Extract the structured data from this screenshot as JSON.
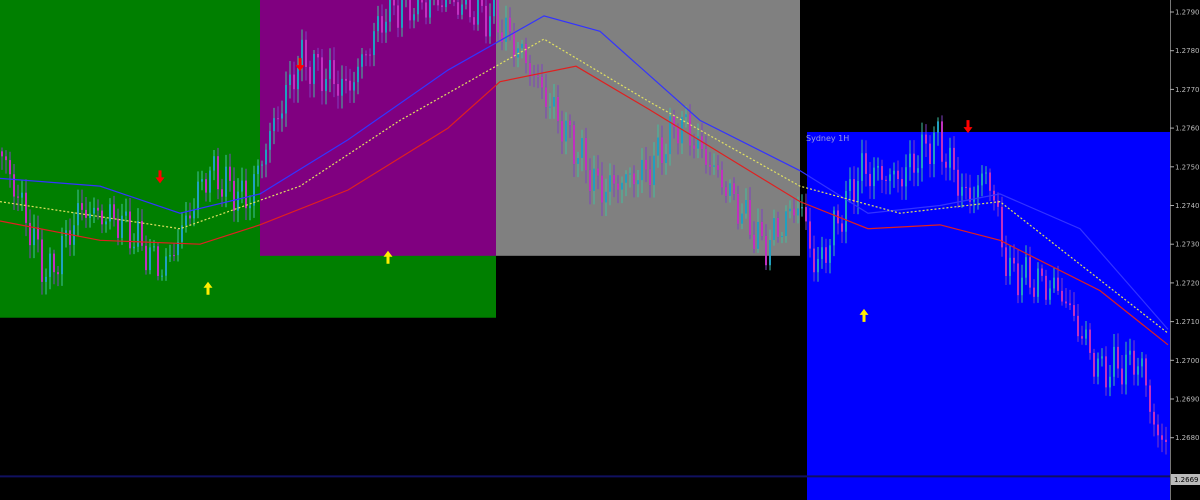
{
  "chart_data": {
    "type": "candlestick",
    "title": "",
    "ylim": [
      1.2665,
      1.2795
    ],
    "y_ticks": [
      "1.2790",
      "1.2780",
      "1.2770",
      "1.2760",
      "1.2750",
      "1.2740",
      "1.2730",
      "1.2720",
      "1.2710",
      "1.2700",
      "1.2690",
      "1.2680"
    ],
    "current_price": "1.2669",
    "session_label": "Sydney 1H",
    "bar_count": 292,
    "sessions": [
      {
        "color": "#007f00",
        "bar_start": 0,
        "bar_end": 124,
        "high": 1.28,
        "low": 1.2711
      },
      {
        "color": "#800080",
        "bar_start": 65,
        "bar_end": 124,
        "high": 1.28,
        "low": 1.2727
      },
      {
        "color": "#808080",
        "bar_start": 124,
        "bar_end": 200,
        "high": 1.28,
        "low": 1.2727
      },
      {
        "color": "#0000ff",
        "bar_start": 201,
        "bar_end": 292,
        "high": 1.2759,
        "low": 1.26
      }
    ],
    "price_path": [
      [
        0,
        1.2754
      ],
      [
        5,
        1.2741
      ],
      [
        12,
        1.2721
      ],
      [
        20,
        1.2739
      ],
      [
        30,
        1.2736
      ],
      [
        41,
        1.2723
      ],
      [
        52,
        1.2749
      ],
      [
        62,
        1.2741
      ],
      [
        67,
        1.2757
      ],
      [
        75,
        1.2778
      ],
      [
        87,
        1.277
      ],
      [
        97,
        1.2791
      ],
      [
        112,
        1.2793
      ],
      [
        124,
        1.2788
      ],
      [
        130,
        1.278
      ],
      [
        137,
        1.2767
      ],
      [
        150,
        1.2744
      ],
      [
        162,
        1.2749
      ],
      [
        170,
        1.2762
      ],
      [
        180,
        1.2747
      ],
      [
        191,
        1.2729
      ],
      [
        200,
        1.2741
      ],
      [
        204,
        1.2723
      ],
      [
        215,
        1.2749
      ],
      [
        225,
        1.2747
      ],
      [
        234,
        1.2758
      ],
      [
        242,
        1.2741
      ],
      [
        247,
        1.2749
      ],
      [
        252,
        1.2723
      ],
      [
        265,
        1.2718
      ],
      [
        275,
        1.2697
      ],
      [
        285,
        1.27
      ],
      [
        290,
        1.2677
      ],
      [
        292,
        1.2682
      ]
    ],
    "series": [
      {
        "color": "#3333ff",
        "style": "solid",
        "points": [
          [
            0,
            1.2747
          ],
          [
            25,
            1.2745
          ],
          [
            45,
            1.2738
          ],
          [
            65,
            1.2743
          ],
          [
            87,
            1.2757
          ],
          [
            112,
            1.2775
          ],
          [
            136,
            1.2789
          ],
          [
            150,
            1.2785
          ],
          [
            175,
            1.2762
          ],
          [
            200,
            1.2749
          ],
          [
            217,
            1.2738
          ],
          [
            235,
            1.274
          ],
          [
            250,
            1.2743
          ],
          [
            270,
            1.2734
          ],
          [
            292,
            1.2708
          ]
        ]
      },
      {
        "color": "#e0e060",
        "style": "dotted",
        "points": [
          [
            0,
            1.2741
          ],
          [
            45,
            1.2734
          ],
          [
            75,
            1.2745
          ],
          [
            100,
            1.2762
          ],
          [
            136,
            1.2783
          ],
          [
            162,
            1.2767
          ],
          [
            200,
            1.2745
          ],
          [
            225,
            1.2738
          ],
          [
            250,
            1.2741
          ],
          [
            292,
            1.2707
          ]
        ]
      },
      {
        "color": "#e02020",
        "style": "solid",
        "points": [
          [
            0,
            1.2736
          ],
          [
            25,
            1.2731
          ],
          [
            50,
            1.273
          ],
          [
            65,
            1.2735
          ],
          [
            87,
            1.2744
          ],
          [
            112,
            1.276
          ],
          [
            125,
            1.2772
          ],
          [
            144,
            1.2776
          ],
          [
            162,
            1.2765
          ],
          [
            200,
            1.2741
          ],
          [
            217,
            1.2734
          ],
          [
            235,
            1.2735
          ],
          [
            250,
            1.2731
          ],
          [
            275,
            1.2718
          ],
          [
            292,
            1.2704
          ]
        ]
      }
    ],
    "signals": [
      {
        "type": "sell",
        "color": "#ff0000",
        "bar": 40,
        "price": 1.2747
      },
      {
        "type": "sell",
        "color": "#ff0000",
        "bar": 75,
        "price": 1.2776
      },
      {
        "type": "sell",
        "color": "#ff0000",
        "bar": 242,
        "price": 1.276
      },
      {
        "type": "buy",
        "color": "#ffee00",
        "bar": 52,
        "price": 1.2719
      },
      {
        "type": "buy",
        "color": "#ffee00",
        "bar": 97,
        "price": 1.2727
      },
      {
        "type": "buy",
        "color": "#ffee00",
        "bar": 216,
        "price": 1.2712
      }
    ],
    "reference_line": {
      "price": 1.267,
      "color": "#101060"
    }
  }
}
